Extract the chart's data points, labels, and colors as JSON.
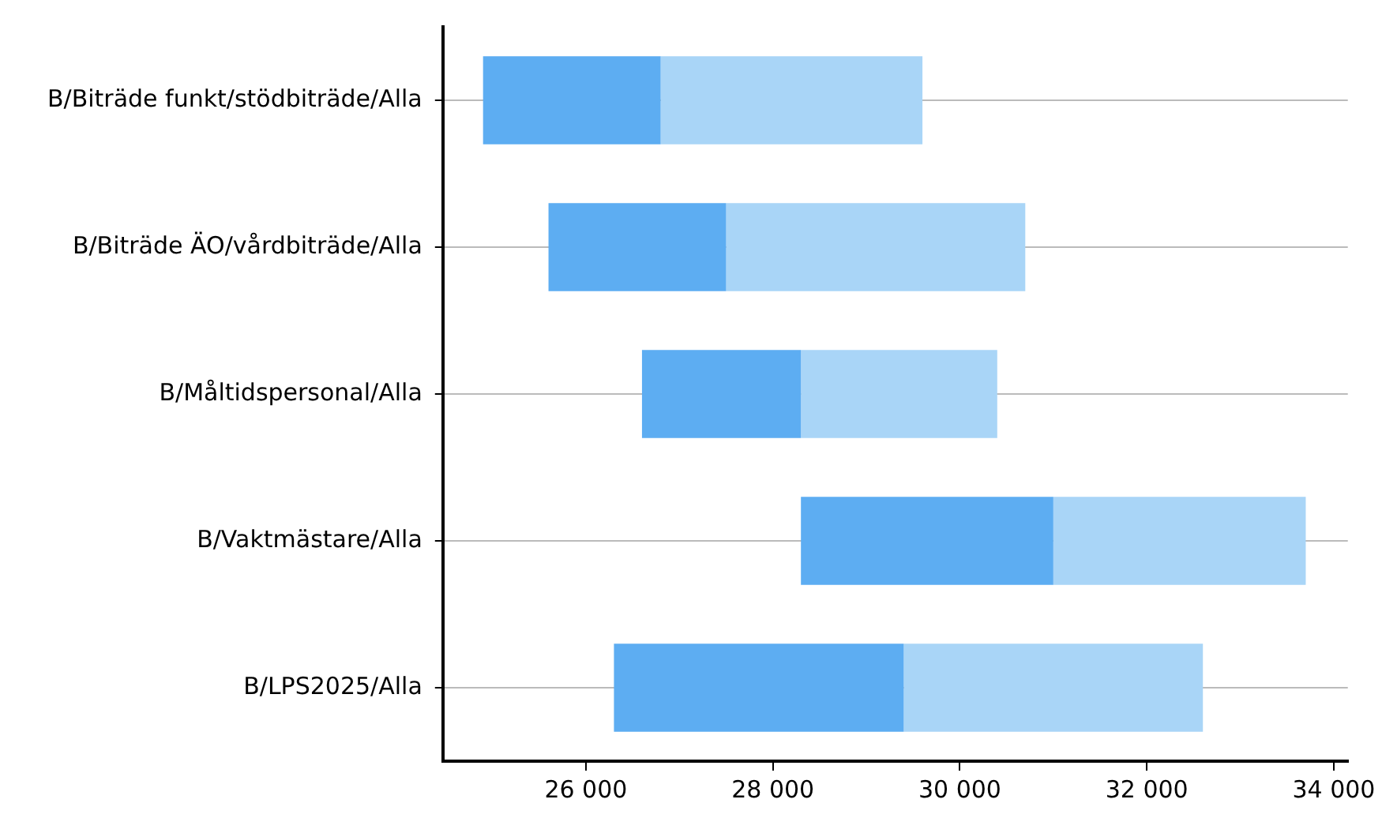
{
  "chart_data": {
    "type": "bar",
    "orientation": "horizontal",
    "categories": [
      "B/Biträde funkt/stödbiträde/Alla",
      "B/Biträde ÄO/vårdbiträde/Alla",
      "B/Måltidspersonal/Alla",
      "B/Vaktmästare/Alla",
      "B/LPS2025/Alla"
    ],
    "series": [
      {
        "color": "#5dadf2",
        "base": [
          24900,
          25600,
          26600,
          28300,
          26300
        ],
        "values": [
          1900,
          1900,
          1700,
          2700,
          3100
        ]
      },
      {
        "color": "#a9d5f7",
        "base": [
          26800,
          27500,
          28300,
          31000,
          29400
        ],
        "values": [
          2800,
          3200,
          2100,
          2700,
          3200
        ]
      }
    ],
    "xlim": [
      24470,
      34150
    ],
    "xticks": [
      {
        "value": 26000,
        "label": "26 000"
      },
      {
        "value": 28000,
        "label": "28 000"
      },
      {
        "value": 30000,
        "label": "30 000"
      },
      {
        "value": 32000,
        "label": "32 000"
      },
      {
        "value": 34000,
        "label": "34 000"
      }
    ],
    "grid": "y",
    "legend": false
  }
}
